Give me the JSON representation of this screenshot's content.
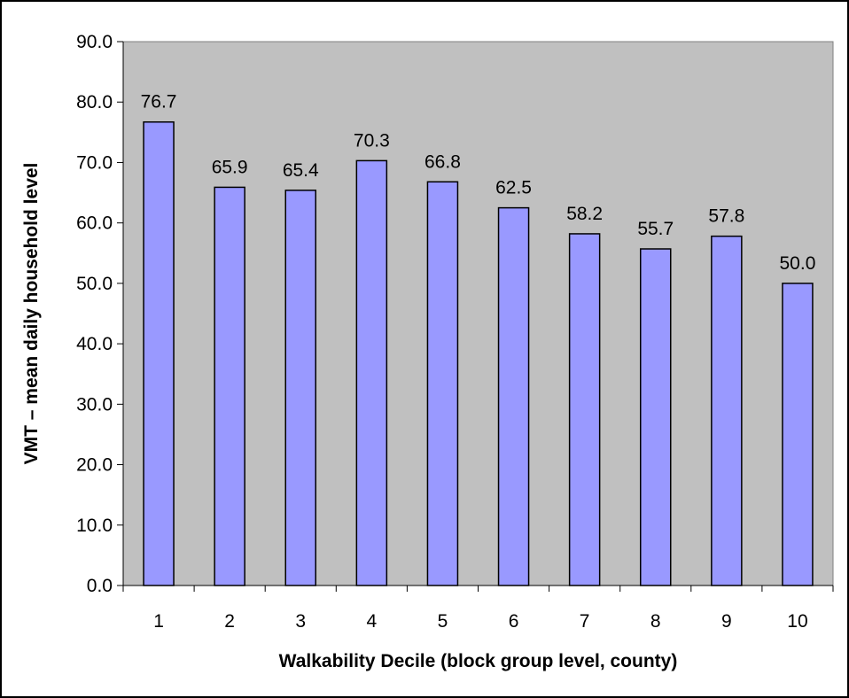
{
  "chart_data": {
    "type": "bar",
    "title": "",
    "xlabel": "Walkability Decile (block group level, county)",
    "ylabel": "VMT – mean daily household level",
    "categories": [
      "1",
      "2",
      "3",
      "4",
      "5",
      "6",
      "7",
      "8",
      "9",
      "10"
    ],
    "series": [
      {
        "values": [
          76.7,
          65.9,
          65.4,
          70.3,
          66.8,
          62.5,
          58.2,
          55.7,
          57.8,
          50.0
        ],
        "color": "#9999ff"
      }
    ],
    "data_labels": [
      "76.7",
      "65.9",
      "65.4",
      "70.3",
      "66.8",
      "62.5",
      "58.2",
      "55.7",
      "57.8",
      "50.0"
    ],
    "y_ticks": [
      "0.0",
      "10.0",
      "20.0",
      "30.0",
      "40.0",
      "50.0",
      "60.0",
      "70.0",
      "80.0",
      "90.0"
    ],
    "ylim": [
      0,
      90
    ],
    "grid": false,
    "legend": "none",
    "plot_background": "#c0c0c0",
    "bar_color": "#9999ff"
  }
}
